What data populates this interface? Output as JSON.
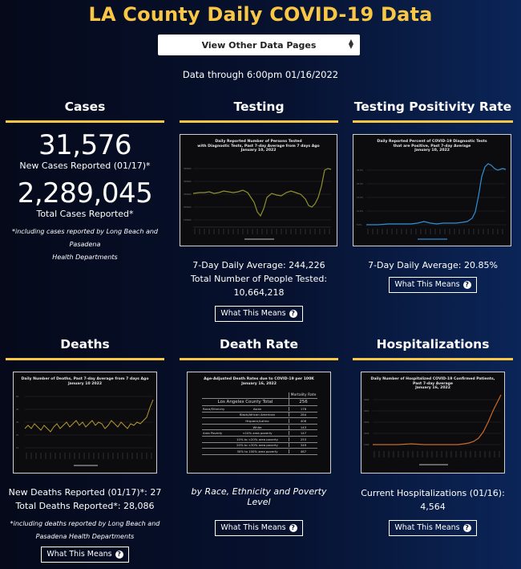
{
  "header": {
    "title": "LA County Daily COVID-19 Data",
    "select_label": "View Other Data Pages",
    "data_through": "Data through 6:00pm 01/16/2022"
  },
  "cases": {
    "title": "Cases",
    "new_cases": "31,576",
    "new_cases_label": "New Cases Reported (01/17)*",
    "total_cases": "2,289,045",
    "total_cases_label": "Total Cases Reported*",
    "footnote_line1": "*including cases reported by Long Beach and Pasadena",
    "footnote_line2": "Health Departments"
  },
  "testing": {
    "title": "Testing",
    "chart_title_1": "Daily Reported Number of Persons Tested",
    "chart_title_2": "with Diagnostic Tests, Past 7-day Average from 7 days Ago",
    "chart_title_3": "January 10, 2022",
    "stat1": "7-Day Daily Average: 244,226",
    "stat2": "Total Number of People Tested: 10,664,218",
    "button": "What This Means"
  },
  "positivity": {
    "title": "Testing Positivity Rate",
    "chart_title_1": "Daily Reported Percent of COVID-19 Diagnostic Tests",
    "chart_title_2": "that are Positive, Past 7-day Average",
    "chart_title_3": "January 10, 2022",
    "stat1": "7-Day Daily Average: 20.85%",
    "button": "What This Means"
  },
  "deaths": {
    "title": "Deaths",
    "chart_title_1": "Daily Number of Deaths, Past 7-day Average from 7 days Ago",
    "chart_title_2": "January 10 2022",
    "stat1": "New Deaths Reported (01/17)*: 27",
    "stat2": "Total Deaths Reported*: 28,086",
    "footnote_line1": "*including deaths reported by Long Beach and",
    "footnote_line2": "Pasadena Health Departments",
    "button": "What This Means"
  },
  "death_rate": {
    "title": "Death Rate",
    "chart_title_1": "Age-Adjusted Death Rates due to COVID-19 per 100K",
    "chart_title_2": "January 16, 2022",
    "table_header": "Mortality Rate",
    "table_total_label": "Los Angeles County Total",
    "table_total_value": "256",
    "table_rows": [
      {
        "group": "Race/Ethnicity",
        "label": "Asian",
        "value": "176"
      },
      {
        "group": "",
        "label": "Black/African American",
        "value": "284"
      },
      {
        "group": "",
        "label": "Hispanic/Latino",
        "value": "406"
      },
      {
        "group": "",
        "label": "White",
        "value": "143"
      },
      {
        "group": "Area Poverty",
        "label": "<10% area poverty",
        "value": "147"
      },
      {
        "group": "",
        "label": "10% to <20% area poverty",
        "value": "253"
      },
      {
        "group": "",
        "label": "20% to <30% area poverty",
        "value": "349"
      },
      {
        "group": "",
        "label": "30% to 100% area poverty",
        "value": "467"
      }
    ],
    "subtitle": "by Race, Ethnicity and Poverty Level",
    "button": "What This Means"
  },
  "hospitalizations": {
    "title": "Hospitalizations",
    "chart_title_1": "Daily Number of Hospitalized COVID-19 Confirmed Patients,",
    "chart_title_2": "Past 7-day Average",
    "chart_title_3": "January 16, 2022",
    "stat1": "Current Hospitalizations (01/16): 4,564",
    "button": "What This Means"
  },
  "colors": {
    "accent_gold": "#f9c646",
    "testing_line": "#8f8f2e",
    "positivity_line": "#2f8fd6",
    "deaths_line": "#b89a2e",
    "hosp_line": "#c8692b"
  }
}
